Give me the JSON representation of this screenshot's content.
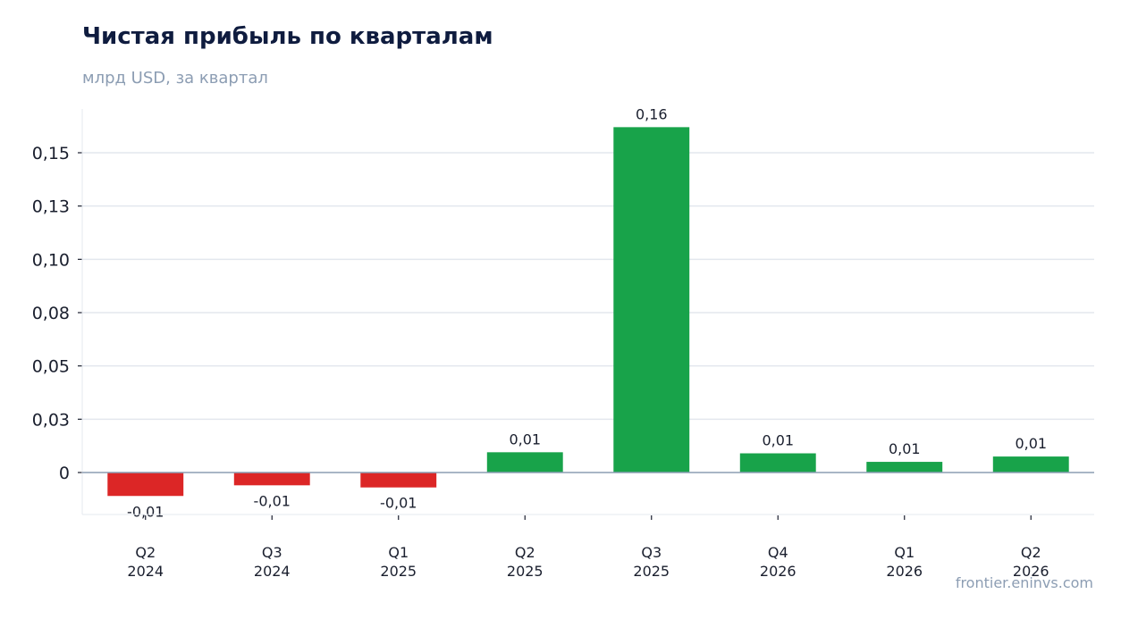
{
  "header": {
    "title": "Чистая прибыль по кварталам",
    "subtitle": "млрд USD, за квартал"
  },
  "footer": {
    "source": "frontier.eninvs.com"
  },
  "colors": {
    "positive": "#18a34a",
    "negative": "#dc2626",
    "grid": "#e3e7ee",
    "zero_line": "#8c9db3"
  },
  "chart_data": {
    "type": "bar",
    "title": "Чистая прибыль по кварталам",
    "subtitle": "млрд USD, за квартал",
    "xlabel": "",
    "ylabel": "",
    "categories": [
      [
        "Q2",
        "2024"
      ],
      [
        "Q3",
        "2024"
      ],
      [
        "Q1",
        "2025"
      ],
      [
        "Q2",
        "2025"
      ],
      [
        "Q3",
        "2025"
      ],
      [
        "Q4",
        "2026"
      ],
      [
        "Q1",
        "2026"
      ],
      [
        "Q2",
        "2026"
      ]
    ],
    "values": [
      -0.011,
      -0.006,
      -0.007,
      0.0095,
      0.162,
      0.009,
      0.005,
      0.0075
    ],
    "data_labels": [
      "-0,01",
      "-0,01",
      "-0,01",
      "0,01",
      "0,16",
      "0,01",
      "0,01",
      "0,01"
    ],
    "y_ticks": [
      0,
      0.025,
      0.05,
      0.075,
      0.1,
      0.125,
      0.15
    ],
    "y_tick_labels": [
      "0",
      "0,03",
      "0,05",
      "0,08",
      "0,10",
      "0,13",
      "0,15"
    ],
    "ylim": [
      -0.02,
      0.17
    ],
    "grid": true,
    "legend": "none"
  }
}
